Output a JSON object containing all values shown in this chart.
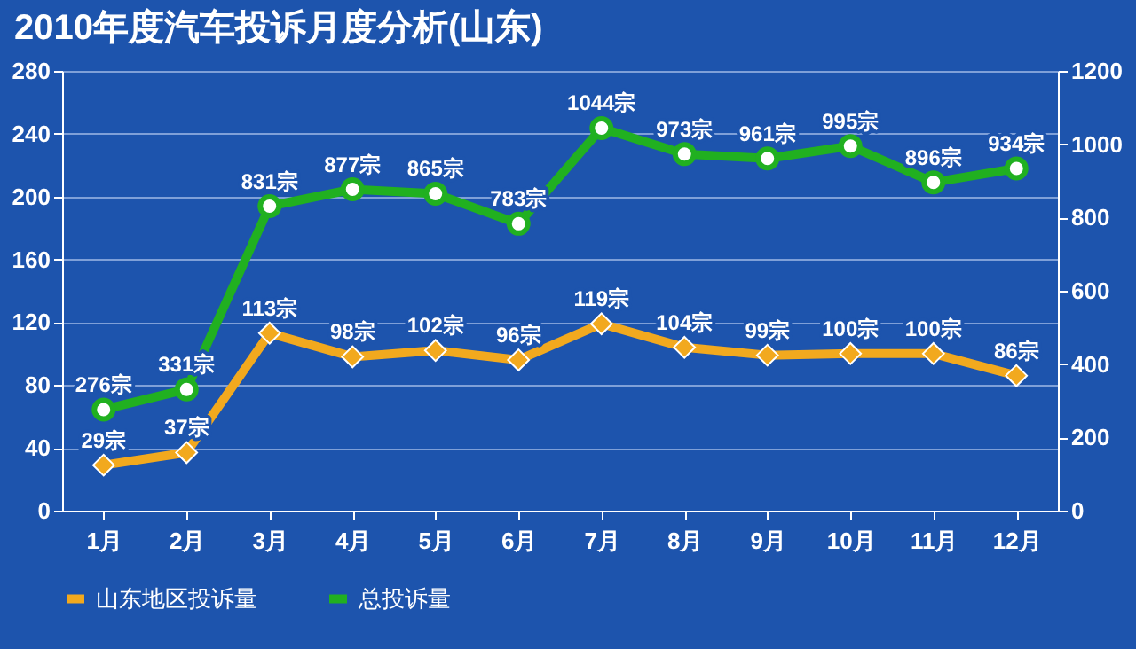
{
  "chart_data": {
    "type": "line",
    "title": "2010年度汽车投诉月度分析(山东)",
    "categories": [
      "1月",
      "2月",
      "3月",
      "4月",
      "5月",
      "6月",
      "7月",
      "8月",
      "9月",
      "10月",
      "11月",
      "12月"
    ],
    "series": [
      {
        "name": "山东地区投诉量",
        "color": "#f2a91e",
        "marker": "diamond",
        "values": [
          29,
          37,
          113,
          98,
          102,
          96,
          119,
          104,
          99,
          100,
          100,
          86
        ],
        "value_labels": [
          "29宗",
          "37宗",
          "113宗",
          "98宗",
          "102宗",
          "96宗",
          "119宗",
          "104宗",
          "99宗",
          "100宗",
          "100宗",
          "86宗"
        ]
      },
      {
        "name": "总投诉量",
        "color": "#21b020",
        "marker": "circle",
        "axis": "y2",
        "values": [
          276,
          331,
          831,
          877,
          865,
          783,
          1044,
          973,
          961,
          995,
          896,
          934
        ],
        "value_labels": [
          "276宗",
          "331宗",
          "831宗",
          "877宗",
          "865宗",
          "783宗",
          "1044宗",
          "973宗",
          "961宗",
          "995宗",
          "896宗",
          "934宗"
        ]
      }
    ],
    "ylim": [
      0,
      280
    ],
    "yticks": [
      0,
      40,
      80,
      120,
      160,
      200,
      240,
      280
    ],
    "y2lim": [
      0,
      1200
    ],
    "y2ticks": [
      0,
      200,
      400,
      600,
      800,
      1000,
      1200
    ],
    "grid": "y",
    "legend": "bottom",
    "line_style": "solid"
  }
}
